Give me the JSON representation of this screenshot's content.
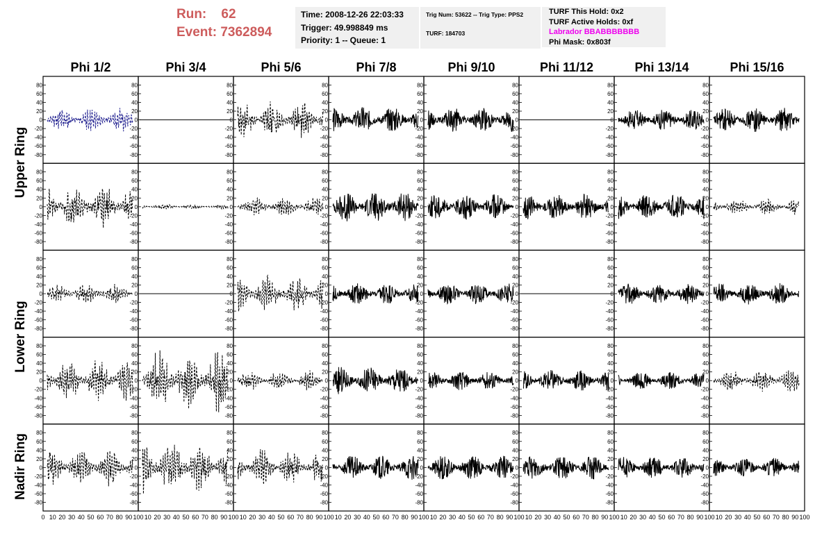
{
  "header": {
    "run_label": "Run:",
    "run_value": "62",
    "event_label": "Event:",
    "event_value": "7362894",
    "time_text": "Time: 2008-12-26 22:03:33",
    "trigger_text": "Trigger: 49.998849 ms",
    "priority_text": "Priority: 1 -- Queue: 1",
    "trig_num_text": "Trig Num: 53622 -- Trig Type: PPS2",
    "turf_text": "TURF: 184703",
    "turf_hold_text": "TURF This Hold: 0x2",
    "turf_active_text": "TURF Active Holds: 0xf",
    "labrador_text": "Labrador BBABBBBBBB",
    "phi_mask_text": "Phi Mask: 0x803f"
  },
  "colors": {
    "run_text": "#cd5c5c",
    "labrador_text": "#ee00ee",
    "info_background": "#f0f0f0",
    "trace_blue": "#1a1a8c",
    "trace_black": "#000000"
  },
  "chart_data": {
    "type": "line",
    "columns": [
      "Phi 1/2",
      "Phi 3/4",
      "Phi 5/6",
      "Phi 7/8",
      "Phi 9/10",
      "Phi 11/12",
      "Phi 13/14",
      "Phi 15/16"
    ],
    "rows": [
      "Upper Ring",
      "Lower Ring",
      "Nadir Ring"
    ],
    "ylim": [
      -95,
      95
    ],
    "yticks": [
      "80",
      "60",
      "40",
      "20",
      "0",
      "-20",
      "-40",
      "-60",
      "-80"
    ],
    "xlim": [
      0,
      100
    ],
    "xticks": [
      "0",
      "10",
      "20",
      "30",
      "40",
      "50",
      "60",
      "70",
      "80",
      "90",
      "100"
    ],
    "panels": [
      [
        {
          "style": "blue-dashed",
          "amp": 30,
          "seed": 11
        },
        {
          "style": "flat",
          "amp": 0,
          "seed": 12
        },
        {
          "style": "dashed",
          "amp": 45,
          "seed": 13
        },
        {
          "style": "solid",
          "amp": 30,
          "seed": 14
        },
        {
          "style": "solid",
          "amp": 28,
          "seed": 15
        },
        {
          "style": "flat",
          "amp": 0,
          "seed": 16
        },
        {
          "style": "solid",
          "amp": 25,
          "seed": 17
        },
        {
          "style": "solid",
          "amp": 28,
          "seed": 18
        }
      ],
      [
        {
          "style": "dashed",
          "amp": 55,
          "seed": 21
        },
        {
          "style": "dashed",
          "amp": 6,
          "seed": 22
        },
        {
          "style": "dashed",
          "amp": 25,
          "seed": 23
        },
        {
          "style": "solid",
          "amp": 35,
          "seed": 24
        },
        {
          "style": "solid",
          "amp": 30,
          "seed": 25
        },
        {
          "style": "solid",
          "amp": 30,
          "seed": 26
        },
        {
          "style": "solid",
          "amp": 30,
          "seed": 27
        },
        {
          "style": "dashed",
          "amp": 20,
          "seed": 28
        }
      ],
      [
        {
          "style": "dashed",
          "amp": 25,
          "seed": 31
        },
        {
          "style": "flat",
          "amp": 0,
          "seed": 32
        },
        {
          "style": "dashed",
          "amp": 45,
          "seed": 33
        },
        {
          "style": "solid",
          "amp": 25,
          "seed": 34
        },
        {
          "style": "solid",
          "amp": 25,
          "seed": 35
        },
        {
          "style": "flat",
          "amp": 0,
          "seed": 36
        },
        {
          "style": "solid",
          "amp": 25,
          "seed": 37
        },
        {
          "style": "solid",
          "amp": 25,
          "seed": 38
        }
      ],
      [
        {
          "style": "dashed",
          "amp": 55,
          "seed": 41
        },
        {
          "style": "dashed",
          "amp": 75,
          "seed": 42
        },
        {
          "style": "dashed",
          "amp": 25,
          "seed": 43
        },
        {
          "style": "solid",
          "amp": 32,
          "seed": 44
        },
        {
          "style": "solid",
          "amp": 22,
          "seed": 45
        },
        {
          "style": "solid",
          "amp": 25,
          "seed": 46
        },
        {
          "style": "solid",
          "amp": 20,
          "seed": 47
        },
        {
          "style": "dashed",
          "amp": 30,
          "seed": 48
        }
      ],
      [
        {
          "style": "dashed",
          "amp": 45,
          "seed": 51
        },
        {
          "style": "dashed",
          "amp": 65,
          "seed": 52
        },
        {
          "style": "dashed",
          "amp": 45,
          "seed": 53
        },
        {
          "style": "solid",
          "amp": 28,
          "seed": 54
        },
        {
          "style": "solid",
          "amp": 28,
          "seed": 55
        },
        {
          "style": "solid",
          "amp": 28,
          "seed": 56
        },
        {
          "style": "solid",
          "amp": 25,
          "seed": 57
        },
        {
          "style": "solid",
          "amp": 22,
          "seed": 58
        }
      ]
    ]
  }
}
